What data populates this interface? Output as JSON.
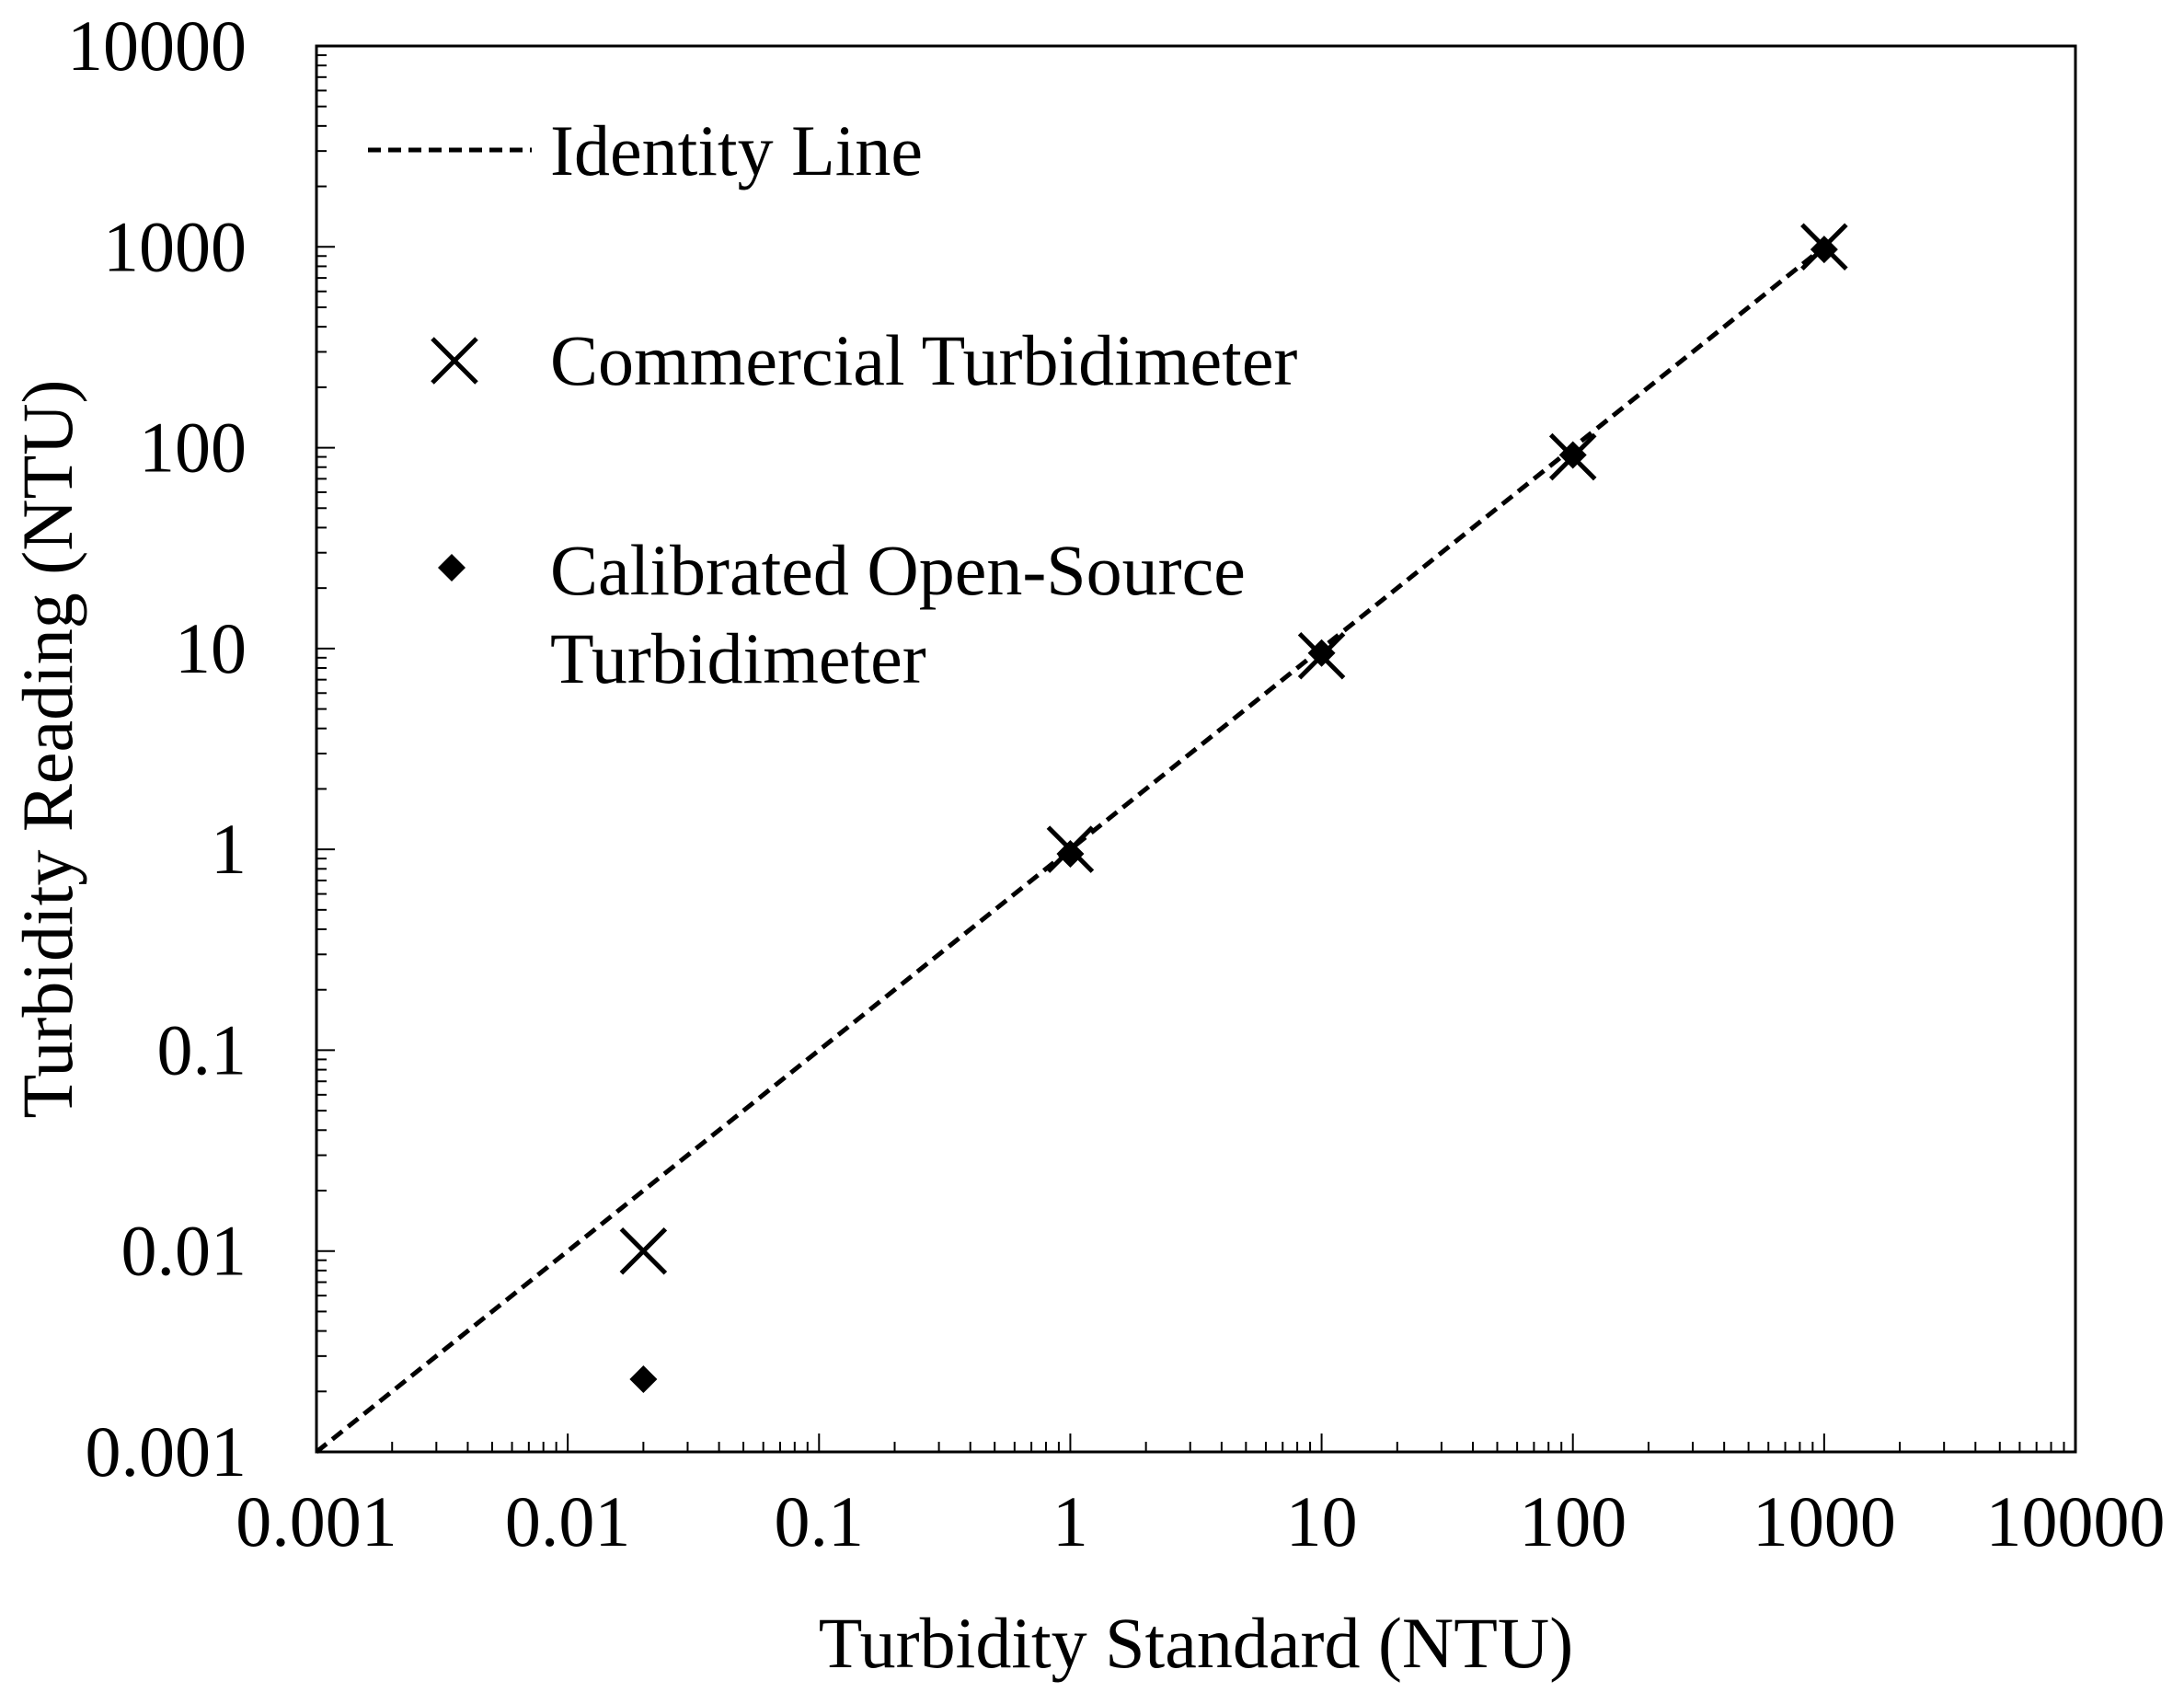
{
  "chart_data": {
    "type": "scatter",
    "title": "",
    "xlabel": "Turbidity Standard (NTU)",
    "ylabel": "Turbidity Reading (NTU)",
    "xscale": "log",
    "yscale": "log",
    "xlim": [
      0.001,
      10000
    ],
    "ylim": [
      0.001,
      10000
    ],
    "x_ticks": [
      "0.001",
      "0.01",
      "0.1",
      "1",
      "10",
      "100",
      "1000",
      "10000"
    ],
    "y_ticks": [
      "0.001",
      "0.01",
      "0.1",
      "1",
      "10",
      "100",
      "1000",
      "10000"
    ],
    "grid": false,
    "legend_position": "top-left",
    "identity_line": {
      "name": "Identity Line",
      "x": [
        0.001,
        1000
      ],
      "y": [
        0.001,
        1000
      ],
      "style": "dashed"
    },
    "series": [
      {
        "name": "Commercial Turbidimeter",
        "marker": "x",
        "x": [
          0.02,
          1,
          10,
          100,
          1000
        ],
        "y": [
          0.01,
          1,
          9.2,
          90,
          1000
        ]
      },
      {
        "name": "Calibrated Open-Source Turbidimeter",
        "marker": "diamond",
        "x": [
          0.02,
          1,
          10,
          100,
          1000
        ],
        "y": [
          0.0023,
          0.95,
          9.5,
          92,
          970
        ]
      }
    ]
  },
  "legend": {
    "identity": "Identity Line",
    "commercial": "Commercial Turbidimeter",
    "open_source_line1": "Calibrated Open-Source",
    "open_source_line2": "Turbidimeter"
  }
}
